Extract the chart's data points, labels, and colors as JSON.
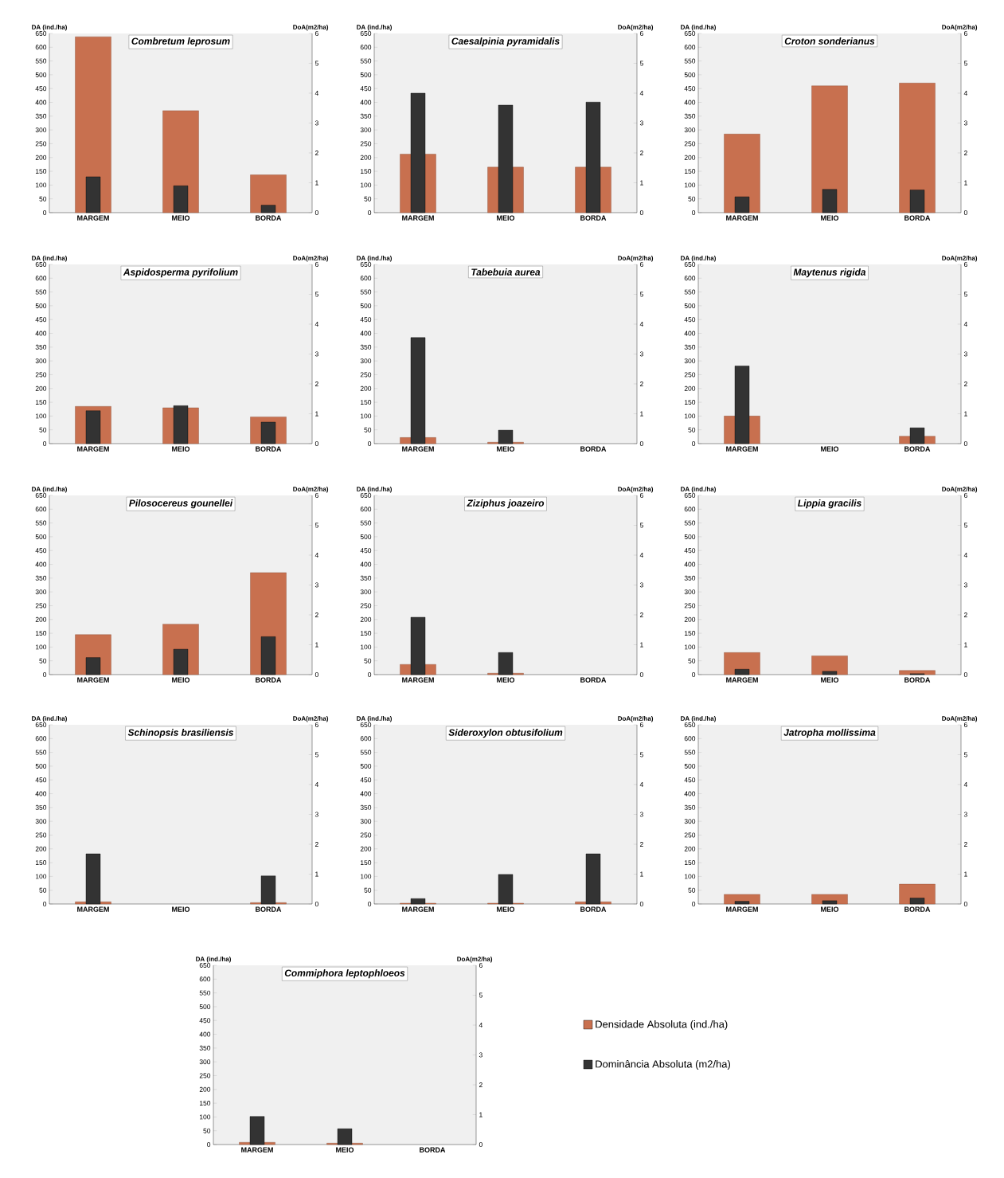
{
  "chart_data": [
    {
      "type": "bar",
      "title": "Combretum leprosum",
      "ylabel": "DA (ind./ha)",
      "y2label": "DoA(m2/ha)",
      "categories": [
        "MARGEM",
        "MEIO",
        "BORDA"
      ],
      "series": [
        {
          "color": "#c8704f",
          "values": [
            638,
            370,
            137
          ]
        },
        {
          "color": "#333333",
          "axis": "y2",
          "values": [
            1.2,
            0.9,
            0.25
          ]
        }
      ],
      "ylim": [
        0,
        650
      ],
      "yticks": [
        0,
        50,
        100,
        150,
        200,
        250,
        300,
        350,
        400,
        450,
        500,
        550,
        600,
        650
      ],
      "y2lim": [
        0,
        6
      ],
      "y2ticks": [
        0,
        1,
        2,
        3,
        4,
        5,
        6
      ]
    },
    {
      "type": "bar",
      "title": "Caesalpinia pyramidalis",
      "ylabel": "DA (ind./ha)",
      "y2label": "DoA(m2/ha)",
      "categories": [
        "MARGEM",
        "MEIO",
        "BORDA"
      ],
      "series": [
        {
          "color": "#c8704f",
          "values": [
            212,
            165,
            165
          ]
        },
        {
          "color": "#333333",
          "axis": "y2",
          "values": [
            4.0,
            3.6,
            3.7
          ]
        }
      ],
      "ylim": [
        0,
        650
      ],
      "yticks": [
        0,
        50,
        100,
        150,
        200,
        250,
        300,
        350,
        400,
        450,
        500,
        550,
        600,
        650
      ],
      "y2lim": [
        0,
        6
      ],
      "y2ticks": [
        0,
        1,
        2,
        3,
        4,
        5,
        6
      ]
    },
    {
      "type": "bar",
      "title": "Croton sonderianus",
      "ylabel": "DA (ind./ha)",
      "y2label": "DoA(m2/ha)",
      "categories": [
        "MARGEM",
        "MEIO",
        "BORDA"
      ],
      "series": [
        {
          "color": "#c8704f",
          "values": [
            285,
            460,
            470
          ]
        },
        {
          "color": "#333333",
          "axis": "y2",
          "values": [
            0.53,
            0.78,
            0.76
          ]
        }
      ],
      "ylim": [
        0,
        650
      ],
      "yticks": [
        0,
        50,
        100,
        150,
        200,
        250,
        300,
        350,
        400,
        450,
        500,
        550,
        600,
        650
      ],
      "y2lim": [
        0,
        6
      ],
      "y2ticks": [
        0,
        1,
        2,
        3,
        4,
        5,
        6
      ]
    },
    {
      "type": "bar",
      "title": "Aspidosperma pyrifolium",
      "ylabel": "DA (ind./ha)",
      "y2label": "DoA(m2/ha)",
      "categories": [
        "MARGEM",
        "MEIO",
        "BORDA"
      ],
      "series": [
        {
          "color": "#c8704f",
          "values": [
            135,
            130,
            97
          ]
        },
        {
          "color": "#333333",
          "axis": "y2",
          "values": [
            1.1,
            1.27,
            0.72
          ]
        }
      ],
      "ylim": [
        0,
        650
      ],
      "yticks": [
        0,
        50,
        100,
        150,
        200,
        250,
        300,
        350,
        400,
        450,
        500,
        550,
        600,
        650
      ],
      "y2lim": [
        0,
        6
      ],
      "y2ticks": [
        0,
        1,
        2,
        3,
        4,
        5,
        6
      ]
    },
    {
      "type": "bar",
      "title": "Tabebuia aurea",
      "ylabel": "DA (ind./ha)",
      "y2label": "DoA(m2/ha)",
      "categories": [
        "MARGEM",
        "MEIO",
        "BORDA"
      ],
      "series": [
        {
          "color": "#c8704f",
          "values": [
            22,
            5,
            null
          ]
        },
        {
          "color": "#333333",
          "axis": "y2",
          "values": [
            3.55,
            0.45,
            null
          ]
        }
      ],
      "ylim": [
        0,
        650
      ],
      "yticks": [
        0,
        50,
        100,
        150,
        200,
        250,
        300,
        350,
        400,
        450,
        500,
        550,
        600,
        650
      ],
      "y2lim": [
        0,
        6
      ],
      "y2ticks": [
        0,
        1,
        2,
        3,
        4,
        5,
        6
      ]
    },
    {
      "type": "bar",
      "title": "Maytenus rigida",
      "ylabel": "DA (ind./ha)",
      "y2label": "DoA(m2/ha)",
      "categories": [
        "MARGEM",
        "MEIO",
        "BORDA"
      ],
      "series": [
        {
          "color": "#c8704f",
          "values": [
            100,
            null,
            27
          ]
        },
        {
          "color": "#333333",
          "axis": "y2",
          "values": [
            2.6,
            null,
            0.53
          ]
        }
      ],
      "ylim": [
        0,
        650
      ],
      "yticks": [
        0,
        50,
        100,
        150,
        200,
        250,
        300,
        350,
        400,
        450,
        500,
        550,
        600,
        650
      ],
      "y2lim": [
        0,
        6
      ],
      "y2ticks": [
        0,
        1,
        2,
        3,
        4,
        5,
        6
      ]
    },
    {
      "type": "bar",
      "title": "Pilosocereus gounellei",
      "ylabel": "DA (ind./ha)",
      "y2label": "DoA(m2/ha)",
      "categories": [
        "MARGEM",
        "MEIO",
        "BORDA"
      ],
      "series": [
        {
          "color": "#c8704f",
          "values": [
            145,
            183,
            370
          ]
        },
        {
          "color": "#333333",
          "axis": "y2",
          "values": [
            0.57,
            0.85,
            1.27
          ]
        }
      ],
      "ylim": [
        0,
        650
      ],
      "yticks": [
        0,
        50,
        100,
        150,
        200,
        250,
        300,
        350,
        400,
        450,
        500,
        550,
        600,
        650
      ],
      "y2lim": [
        0,
        6
      ],
      "y2ticks": [
        0,
        1,
        2,
        3,
        4,
        5,
        6
      ]
    },
    {
      "type": "bar",
      "title": "Ziziphus joazeiro",
      "ylabel": "DA (ind./ha)",
      "y2label": "DoA(m2/ha)",
      "categories": [
        "MARGEM",
        "MEIO",
        "BORDA"
      ],
      "series": [
        {
          "color": "#c8704f",
          "values": [
            37,
            5,
            null
          ]
        },
        {
          "color": "#333333",
          "axis": "y2",
          "values": [
            1.92,
            0.74,
            null
          ]
        }
      ],
      "ylim": [
        0,
        650
      ],
      "yticks": [
        0,
        50,
        100,
        150,
        200,
        250,
        300,
        350,
        400,
        450,
        500,
        550,
        600,
        650
      ],
      "y2lim": [
        0,
        6
      ],
      "y2ticks": [
        0,
        1,
        2,
        3,
        4,
        5,
        6
      ]
    },
    {
      "type": "bar",
      "title": "Lippia gracilis",
      "ylabel": "DA (ind./ha)",
      "y2label": "DoA(m2/ha)",
      "categories": [
        "MARGEM",
        "MEIO",
        "BORDA"
      ],
      "series": [
        {
          "color": "#c8704f",
          "values": [
            80,
            68,
            15
          ]
        },
        {
          "color": "#333333",
          "axis": "y2",
          "values": [
            0.18,
            0.11,
            0.03
          ]
        }
      ],
      "ylim": [
        0,
        650
      ],
      "yticks": [
        0,
        50,
        100,
        150,
        200,
        250,
        300,
        350,
        400,
        450,
        500,
        550,
        600,
        650
      ],
      "y2lim": [
        0,
        6
      ],
      "y2ticks": [
        0,
        1,
        2,
        3,
        4,
        5,
        6
      ]
    },
    {
      "type": "bar",
      "title": "Schinopsis brasiliensis",
      "ylabel": "DA (ind./ha)",
      "y2label": "DoA(m2/ha)",
      "categories": [
        "MARGEM",
        "MEIO",
        "BORDA"
      ],
      "series": [
        {
          "color": "#c8704f",
          "values": [
            8,
            null,
            5
          ]
        },
        {
          "color": "#333333",
          "axis": "y2",
          "values": [
            1.68,
            null,
            0.94
          ]
        }
      ],
      "ylim": [
        0,
        650
      ],
      "yticks": [
        0,
        50,
        100,
        150,
        200,
        250,
        300,
        350,
        400,
        450,
        500,
        550,
        600,
        650
      ],
      "y2lim": [
        0,
        6
      ],
      "y2ticks": [
        0,
        1,
        2,
        3,
        4,
        5,
        6
      ]
    },
    {
      "type": "bar",
      "title": "Sideroxylon obtusifolium",
      "ylabel": "DA (ind./ha)",
      "y2label": "DoA(m2/ha)",
      "categories": [
        "MARGEM",
        "MEIO",
        "BORDA"
      ],
      "series": [
        {
          "color": "#c8704f",
          "values": [
            3,
            3,
            8
          ]
        },
        {
          "color": "#333333",
          "axis": "y2",
          "values": [
            0.18,
            0.99,
            1.68
          ]
        }
      ],
      "ylim": [
        0,
        650
      ],
      "yticks": [
        0,
        50,
        100,
        150,
        200,
        250,
        300,
        350,
        400,
        450,
        500,
        550,
        600,
        650
      ],
      "y2lim": [
        0,
        6
      ],
      "y2ticks": [
        0,
        1,
        2,
        3,
        4,
        5,
        6
      ]
    },
    {
      "type": "bar",
      "title": "Jatropha mollissima",
      "ylabel": "DA (ind./ha)",
      "y2label": "DoA(m2/ha)",
      "categories": [
        "MARGEM",
        "MEIO",
        "BORDA"
      ],
      "series": [
        {
          "color": "#c8704f",
          "values": [
            35,
            35,
            72
          ]
        },
        {
          "color": "#333333",
          "axis": "y2",
          "values": [
            0.09,
            0.11,
            0.2
          ]
        }
      ],
      "ylim": [
        0,
        650
      ],
      "yticks": [
        0,
        50,
        100,
        150,
        200,
        250,
        300,
        350,
        400,
        450,
        500,
        550,
        600,
        650
      ],
      "y2lim": [
        0,
        6
      ],
      "y2ticks": [
        0,
        1,
        2,
        3,
        4,
        5,
        6
      ]
    },
    {
      "type": "bar",
      "title": "Commiphora leptophloeos",
      "ylabel": "DA (ind./ha)",
      "y2label": "DoA(m2/ha)",
      "categories": [
        "MARGEM",
        "MEIO",
        "BORDA"
      ],
      "legend": "right",
      "series": [
        {
          "name": "Densidade Absoluta (ind./ha)",
          "color": "#c8704f",
          "values": [
            8,
            5,
            null
          ]
        },
        {
          "name": "Dominância Absoluta (m2/ha)",
          "color": "#333333",
          "axis": "y2",
          "values": [
            0.94,
            0.53,
            null
          ]
        }
      ],
      "ylim": [
        0,
        650
      ],
      "yticks": [
        0,
        50,
        100,
        150,
        200,
        250,
        300,
        350,
        400,
        450,
        500,
        550,
        600,
        650
      ],
      "y2lim": [
        0,
        6
      ],
      "y2ticks": [
        0,
        1,
        2,
        3,
        4,
        5,
        6
      ]
    }
  ]
}
